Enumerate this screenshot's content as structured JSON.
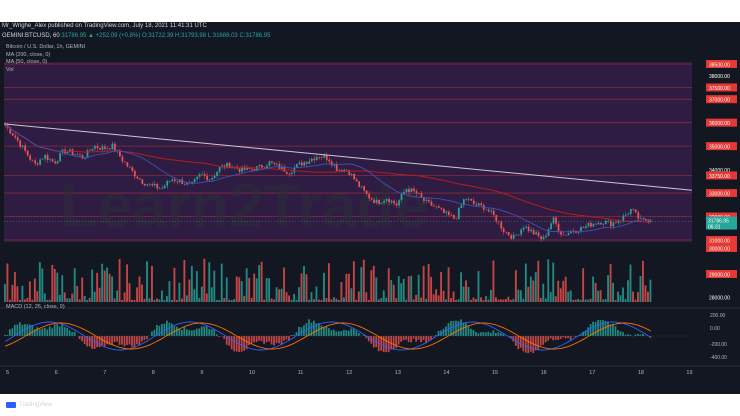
{
  "header": {
    "publisher_line": "Mr_Wrighe_Alex published on TradingView.com, July 18, 2021 11:41:31 UTC",
    "symbol_line_prefix": "GEMINI:BTCUSD, 60",
    "symbol_line_values": "31786.95 ▲ +252.09 (+0.8%) O:31722.39 H:31793.98 L:31688.03 C:31786.95"
  },
  "indicators": {
    "title": "Bitcoin / U.S. Dollar, 1h, GEMINI",
    "ma200": "MA (200, close, 0)",
    "ma50": "MA (50, close, 0)",
    "vol": "Vol"
  },
  "macd_label": "MACD (12, 26, close, 9)",
  "watermark": "Learn2Trade",
  "branding": "TradingView",
  "colors": {
    "bg": "#131722",
    "up": "#26a69a",
    "down": "#ef5350",
    "ma200": "#b71c1c",
    "ma50": "#3f51b5",
    "resistance_band": "#3a1f4f",
    "trendline": "#c9c9d6"
  },
  "price_axis": {
    "labels": [
      {
        "value": 38500,
        "text": "38500.00",
        "tag": true
      },
      {
        "value": 38000,
        "text": "38000.00",
        "tag": false
      },
      {
        "value": 37500,
        "text": "37500.00",
        "tag": true
      },
      {
        "value": 37000,
        "text": "37000.00",
        "tag": true
      },
      {
        "value": 36000,
        "text": "36000.00",
        "tag": true
      },
      {
        "value": 35000,
        "text": "35000.00",
        "tag": true
      },
      {
        "value": 34000,
        "text": "34000.00",
        "tag": false
      },
      {
        "value": 33750,
        "text": "33750.00",
        "tag": true
      },
      {
        "value": 33000,
        "text": "33000.00",
        "tag": true
      },
      {
        "value": 32000,
        "text": "32000.00",
        "tag": true
      },
      {
        "value": 31000,
        "text": "31000.00",
        "tag": true
      },
      {
        "value": 30000,
        "text": "30000.00",
        "tag": true
      },
      {
        "value": 29000,
        "text": "29000.00",
        "tag": true
      },
      {
        "value": 28000,
        "text": "28000.00",
        "tag": false
      }
    ],
    "current_price": "31786.95",
    "countdown": "06:31"
  },
  "macd_axis": {
    "labels": [
      "200.00",
      "0.00",
      "-200.00",
      "-400.00"
    ]
  },
  "time_axis": {
    "labels": [
      "5",
      "6",
      "7",
      "8",
      "9",
      "10",
      "11",
      "12",
      "13",
      "14",
      "15",
      "16",
      "17",
      "18",
      "19"
    ]
  },
  "chart_data": {
    "type": "candlestick",
    "series_price_path": [
      35900,
      35400,
      34800,
      34200,
      34600,
      34300,
      34800,
      34700,
      34500,
      35000,
      34900,
      35000,
      34400,
      33900,
      33500,
      33300,
      33200,
      33600,
      33500,
      33300,
      33800,
      33600,
      34100,
      34200,
      34000,
      34000,
      34100,
      34300,
      34100,
      33900,
      34200,
      34400,
      34600,
      34500,
      34000,
      34000,
      33400,
      32900,
      32600,
      32800,
      32500,
      33200,
      33000,
      32600,
      32400,
      32100,
      31900,
      32800,
      32500,
      32400,
      32000,
      31400,
      31100,
      31600,
      31300,
      31000,
      31900,
      31200,
      31400,
      31500,
      31700,
      31800,
      31700,
      31900,
      32300,
      31800,
      31900
    ],
    "levels": [
      38500,
      37500,
      37000,
      36000,
      35000,
      33750,
      33000,
      32000,
      31000,
      30000,
      29000
    ],
    "ylim": [
      27700,
      39000
    ]
  }
}
